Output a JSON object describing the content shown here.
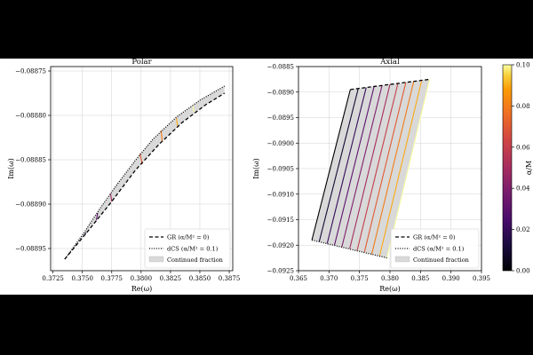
{
  "colors": {
    "frame_bg": "#000000",
    "panel_bg": "#ffffff",
    "fill": "#d9d9d9",
    "grid": "#d0d0d0"
  },
  "colorbar": {
    "label": "α/M",
    "min": 0,
    "max": 0.1,
    "ticks": [
      "0.00",
      "0.02",
      "0.04",
      "0.06",
      "0.08",
      "0.10"
    ],
    "colormap": "inferno"
  },
  "chart_data": [
    {
      "type": "line",
      "title": "Polar",
      "xlabel": "Re(ω)",
      "ylabel": "Im(ω)",
      "xlim": [
        0.3723,
        0.3878
      ],
      "ylim": [
        -0.088975,
        -0.088745
      ],
      "xticks": [
        "0.3725",
        "0.3750",
        "0.3775",
        "0.3800",
        "0.3825",
        "0.3850",
        "0.3875"
      ],
      "yticks": [
        "−0.08875",
        "−0.08880",
        "−0.08885",
        "−0.08890",
        "−0.08895"
      ],
      "xtick_values": [
        0.3725,
        0.375,
        0.3775,
        0.38,
        0.3825,
        0.385,
        0.3875
      ],
      "ytick_values": [
        -0.08875,
        -0.0888,
        -0.08885,
        -0.0889,
        -0.08895
      ],
      "grid": true,
      "legend_position": "lower-right",
      "series": [
        {
          "name": "GR (α/M² = 0)",
          "style": "dashed",
          "x": [
            0.3735,
            0.3755,
            0.3775,
            0.3795,
            0.3815,
            0.3835,
            0.3855,
            0.3871
          ],
          "y": [
            -0.088962,
            -0.08893,
            -0.088897,
            -0.088862,
            -0.088833,
            -0.088808,
            -0.088788,
            -0.088775
          ]
        },
        {
          "name": "dCS (α/M² = 0.1)",
          "style": "dotted",
          "x": [
            0.3735,
            0.375,
            0.3765,
            0.378,
            0.3795,
            0.381,
            0.383,
            0.385,
            0.3871
          ],
          "y": [
            -0.088962,
            -0.088935,
            -0.088905,
            -0.088877,
            -0.088851,
            -0.088827,
            -0.088802,
            -0.088783,
            -0.088767
          ]
        }
      ],
      "fill_label": "Continued fraction",
      "segments": [
        {
          "alpha": 0.01,
          "x0": 0.3752,
          "y0": -0.088935,
          "x1": 0.3753,
          "y1": -0.088932
        },
        {
          "alpha": 0.03,
          "x0": 0.3762,
          "y0": -0.088918,
          "x1": 0.3763,
          "y1": -0.08891
        },
        {
          "alpha": 0.05,
          "x0": 0.3775,
          "y0": -0.088897,
          "x1": 0.3774,
          "y1": -0.088888
        },
        {
          "alpha": 0.07,
          "x0": 0.3801,
          "y0": -0.088855,
          "x1": 0.3799,
          "y1": -0.088843
        },
        {
          "alpha": 0.08,
          "x0": 0.3818,
          "y0": -0.088829,
          "x1": 0.3817,
          "y1": -0.088817
        },
        {
          "alpha": 0.09,
          "x0": 0.3831,
          "y0": -0.088812,
          "x1": 0.383,
          "y1": -0.088803
        },
        {
          "alpha": 0.1,
          "x0": 0.3845,
          "y0": -0.088796,
          "x1": 0.3844,
          "y1": -0.088789
        }
      ]
    },
    {
      "type": "line",
      "title": "Axial",
      "xlabel": "Re(ω)",
      "ylabel": "Im(ω)",
      "xlim": [
        0.365,
        0.395
      ],
      "ylim": [
        -0.0925,
        -0.0885
      ],
      "xticks": [
        "0.365",
        "0.370",
        "0.375",
        "0.380",
        "0.385",
        "0.390",
        "0.395"
      ],
      "yticks": [
        "−0.0885",
        "−0.0890",
        "−0.0895",
        "−0.0900",
        "−0.0905",
        "−0.0910",
        "−0.0915",
        "−0.0920",
        "−0.0925"
      ],
      "xtick_values": [
        0.365,
        0.37,
        0.375,
        0.38,
        0.385,
        0.39,
        0.395
      ],
      "ytick_values": [
        -0.0885,
        -0.089,
        -0.0895,
        -0.09,
        -0.0905,
        -0.091,
        -0.0915,
        -0.092,
        -0.0925
      ],
      "grid": true,
      "legend_position": "lower-right",
      "series": [
        {
          "name": "GR (α/M² = 0)",
          "style": "dashed",
          "x": [
            0.3735,
            0.3865
          ],
          "y": [
            -0.08895,
            -0.08875
          ]
        },
        {
          "name": "dCS (α/M² = 0.1)",
          "style": "dotted",
          "x": [
            0.3672,
            0.3795
          ],
          "y": [
            -0.0919,
            -0.09225
          ]
        }
      ],
      "fill_label": "Continued fraction",
      "lines": [
        {
          "alpha": 0.0,
          "x0": 0.3735,
          "y0": -0.08895,
          "x1": 0.3672,
          "y1": -0.0919
        },
        {
          "alpha": 0.01,
          "x0": 0.3748,
          "y0": -0.08893,
          "x1": 0.3684,
          "y1": -0.09193
        },
        {
          "alpha": 0.02,
          "x0": 0.3761,
          "y0": -0.08891,
          "x1": 0.3697,
          "y1": -0.09197
        },
        {
          "alpha": 0.03,
          "x0": 0.3774,
          "y0": -0.08889,
          "x1": 0.3709,
          "y1": -0.092
        },
        {
          "alpha": 0.04,
          "x0": 0.3787,
          "y0": -0.08887,
          "x1": 0.3721,
          "y1": -0.09204
        },
        {
          "alpha": 0.05,
          "x0": 0.38,
          "y0": -0.08885,
          "x1": 0.3734,
          "y1": -0.09207
        },
        {
          "alpha": 0.06,
          "x0": 0.3813,
          "y0": -0.08883,
          "x1": 0.3746,
          "y1": -0.09211
        },
        {
          "alpha": 0.07,
          "x0": 0.3826,
          "y0": -0.08881,
          "x1": 0.3758,
          "y1": -0.09214
        },
        {
          "alpha": 0.08,
          "x0": 0.3839,
          "y0": -0.08879,
          "x1": 0.377,
          "y1": -0.09218
        },
        {
          "alpha": 0.09,
          "x0": 0.3852,
          "y0": -0.08877,
          "x1": 0.3783,
          "y1": -0.09221
        },
        {
          "alpha": 0.1,
          "x0": 0.3865,
          "y0": -0.08875,
          "x1": 0.3795,
          "y1": -0.09225
        }
      ]
    }
  ]
}
